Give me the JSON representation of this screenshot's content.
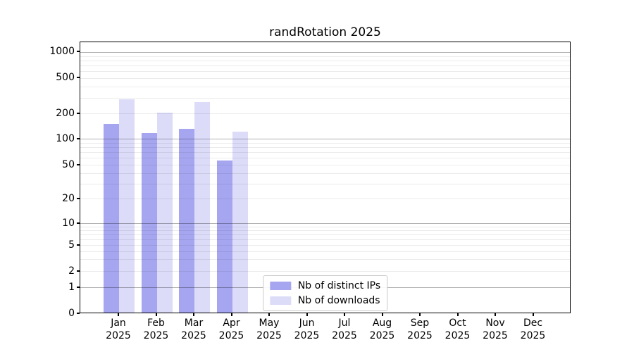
{
  "chart_data": {
    "type": "bar",
    "title": "randRotation 2025",
    "categories": [
      "Jan",
      "Feb",
      "Mar",
      "Apr",
      "May",
      "Jun",
      "Jul",
      "Aug",
      "Sep",
      "Oct",
      "Nov",
      "Dec"
    ],
    "category_year": "2025",
    "series": [
      {
        "name": "Nb of distinct IPs",
        "color": "#a6a6f0",
        "values": [
          150,
          117,
          133,
          56,
          null,
          null,
          null,
          null,
          null,
          null,
          null,
          null
        ]
      },
      {
        "name": "Nb of downloads",
        "color": "#dcdcf9",
        "values": [
          288,
          205,
          270,
          122,
          null,
          null,
          null,
          null,
          null,
          null,
          null,
          null
        ]
      }
    ],
    "xlabel": "",
    "ylabel": "",
    "yscale": "log-with-zero-baseline",
    "yticks": [
      0,
      1,
      2,
      5,
      10,
      20,
      50,
      100,
      200,
      500,
      1000
    ],
    "major_gridline_values": [
      1,
      10,
      100,
      1000
    ],
    "ylim": [
      0,
      1400
    ],
    "grid": "horizontal major and minor",
    "legend_position": "lower center"
  }
}
